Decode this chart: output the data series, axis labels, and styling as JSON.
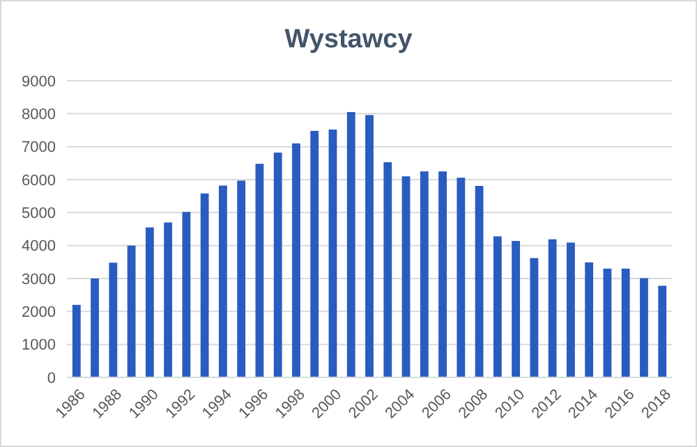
{
  "chart_data": {
    "type": "bar",
    "title": "Wystawcy",
    "categories": [
      "1986",
      null,
      "1988",
      null,
      "1990",
      null,
      "1992",
      null,
      "1994",
      null,
      "1996",
      null,
      "1998",
      null,
      "2000",
      null,
      "2002",
      null,
      "2004",
      null,
      "2006",
      null,
      "2008",
      null,
      "2010",
      null,
      "2012",
      null,
      "2014",
      null,
      "2016",
      null,
      "2018"
    ],
    "values": [
      2200,
      3000,
      3480,
      4000,
      4550,
      4700,
      5020,
      5580,
      5820,
      5970,
      6480,
      6820,
      7100,
      7480,
      7520,
      8050,
      7960,
      6530,
      6100,
      6250,
      6250,
      6060,
      5810,
      4280,
      4140,
      3620,
      4190,
      4090,
      3490,
      3300,
      3300,
      3010,
      2780
    ],
    "color": "#2a5cc0",
    "ylim": [
      0,
      9000
    ],
    "yticks": [
      0,
      1000,
      2000,
      3000,
      4000,
      5000,
      6000,
      7000,
      8000,
      9000
    ],
    "grid": "y"
  }
}
